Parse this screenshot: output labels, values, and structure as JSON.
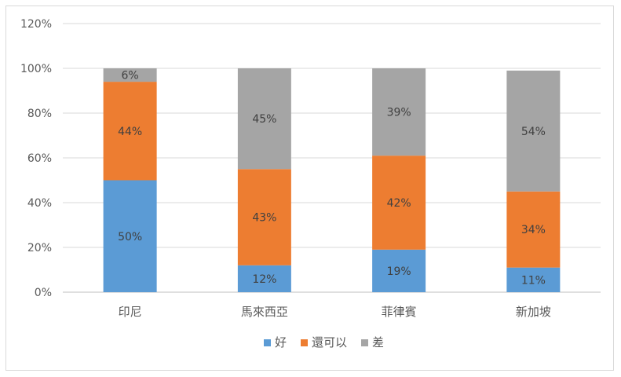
{
  "chart_data": {
    "type": "bar",
    "stacked": true,
    "categories": [
      "印尼",
      "馬來西亞",
      "菲律賓",
      "新加坡"
    ],
    "series": [
      {
        "name": "好",
        "color": "#5b9bd5",
        "values": [
          50,
          12,
          19,
          11
        ]
      },
      {
        "name": "還可以",
        "color": "#ed7d31",
        "values": [
          44,
          43,
          42,
          34
        ]
      },
      {
        "name": "差",
        "color": "#a5a5a5",
        "values": [
          6,
          45,
          39,
          54
        ]
      }
    ],
    "data_labels": [
      [
        "50%",
        "12%",
        "19%",
        "11%"
      ],
      [
        "44%",
        "43%",
        "42%",
        "34%"
      ],
      [
        "6%",
        "45%",
        "39%",
        "54%"
      ]
    ],
    "yticks": [
      "0%",
      "20%",
      "40%",
      "60%",
      "80%",
      "100%",
      "120%"
    ],
    "ylim": [
      0,
      120
    ],
    "grid": true,
    "legend_position": "bottom",
    "title": "",
    "xlabel": "",
    "ylabel": ""
  }
}
